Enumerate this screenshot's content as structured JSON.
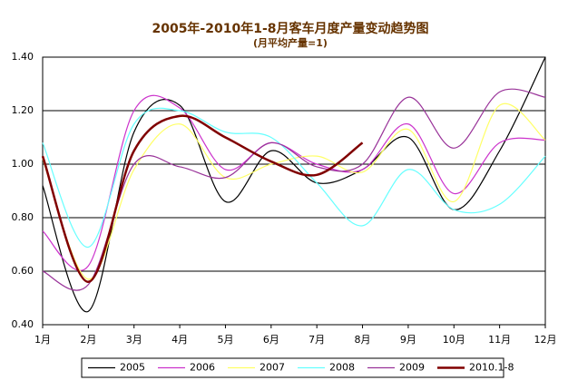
{
  "chart_data": {
    "type": "line",
    "title": "2005年-2010年1-8月客车月度产量变动趋势图",
    "subtitle": "(月平均产量=1)",
    "categories": [
      "1月",
      "2月",
      "3月",
      "4月",
      "5月",
      "6月",
      "7月",
      "8月",
      "9月",
      "10月",
      "11月",
      "12月"
    ],
    "series": [
      {
        "name": "2005",
        "color": "#000000",
        "values": [
          0.92,
          0.45,
          1.12,
          1.22,
          0.86,
          1.05,
          0.93,
          0.98,
          1.1,
          0.83,
          1.05,
          1.4
        ]
      },
      {
        "name": "2006",
        "color": "#cc33cc",
        "values": [
          0.75,
          0.62,
          1.2,
          1.21,
          0.98,
          1.08,
          1.0,
          0.98,
          1.15,
          0.89,
          1.08,
          1.09
        ]
      },
      {
        "name": "2007",
        "color": "#ffff66",
        "values": [
          1.02,
          0.57,
          0.98,
          1.15,
          0.95,
          1.0,
          1.03,
          0.97,
          1.13,
          0.86,
          1.22,
          1.09
        ]
      },
      {
        "name": "2008",
        "color": "#66ffff",
        "values": [
          1.08,
          0.69,
          1.15,
          1.2,
          1.12,
          1.1,
          0.93,
          0.77,
          0.98,
          0.83,
          0.85,
          1.03
        ]
      },
      {
        "name": "2009",
        "color": "#993399",
        "values": [
          0.6,
          0.55,
          1.0,
          0.99,
          0.95,
          1.08,
          0.99,
          1.0,
          1.25,
          1.06,
          1.27,
          1.25
        ]
      },
      {
        "name": "2010.1-8",
        "color": "#800000",
        "values": [
          1.03,
          0.56,
          1.05,
          1.18,
          1.1,
          1.01,
          0.96,
          1.08,
          null,
          null,
          null,
          null
        ]
      }
    ],
    "ylim": [
      0.4,
      1.4
    ],
    "yticks": [
      {
        "value": 0.4,
        "label": "0.40"
      },
      {
        "value": 0.6,
        "label": "0.60"
      },
      {
        "value": 0.8,
        "label": "0.80"
      },
      {
        "value": 1.0,
        "label": "1.00"
      },
      {
        "value": 1.2,
        "label": "1.20"
      },
      {
        "value": 1.4,
        "label": "1.40"
      }
    ],
    "grid": true,
    "legend": "bottom"
  }
}
